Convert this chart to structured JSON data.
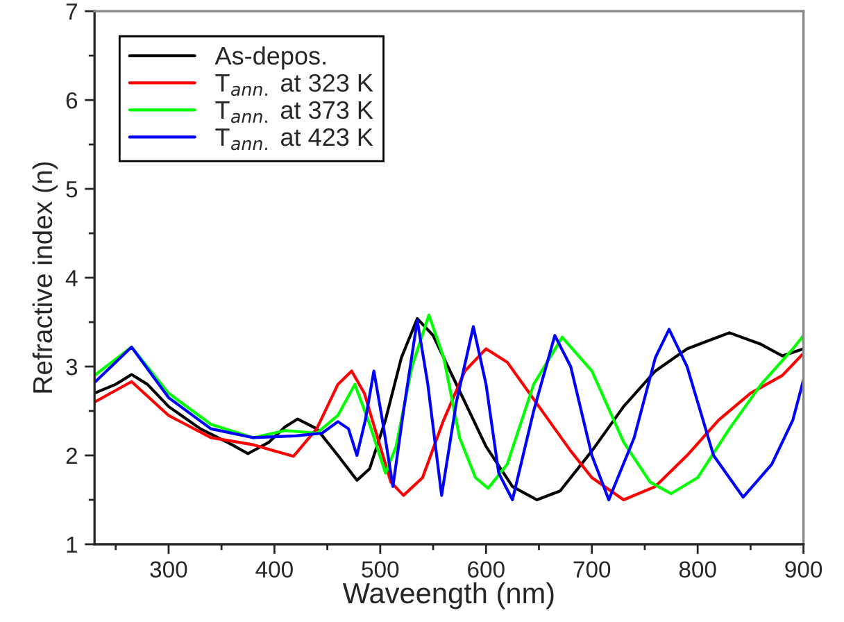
{
  "chart_data": {
    "type": "line",
    "xlabel": "Waveength (nm)",
    "ylabel": "Refractive index (n)",
    "xlim": [
      230,
      900
    ],
    "ylim": [
      1,
      7
    ],
    "xticks": [
      {
        "value": 250,
        "label": null
      },
      300,
      {
        "value": 350,
        "label": null
      },
      400,
      {
        "value": 450,
        "label": null
      },
      500,
      {
        "value": 550,
        "label": null
      },
      600,
      {
        "value": 650,
        "label": null
      },
      700,
      {
        "value": 750,
        "label": null
      },
      800,
      {
        "value": 850,
        "label": null
      },
      900
    ],
    "yticks": [
      1,
      {
        "value": 1.5,
        "label": null
      },
      2,
      {
        "value": 2.5,
        "label": null
      },
      3,
      {
        "value": 3.5,
        "label": null
      },
      4,
      {
        "value": 4.5,
        "label": null
      },
      5,
      {
        "value": 5.5,
        "label": null
      },
      6,
      {
        "value": 6.5,
        "label": null
      },
      7
    ],
    "grid": false,
    "legend": "top left",
    "marker": "none",
    "line_style": "solid",
    "series": [
      {
        "name": "As-depos.",
        "color": "#000000",
        "x": [
          230,
          250,
          265,
          280,
          300,
          330,
          360,
          375,
          395,
          410,
          422,
          440,
          460,
          478,
          490,
          505,
          520,
          535,
          550,
          570,
          600,
          625,
          648,
          670,
          700,
          730,
          760,
          790,
          830,
          860,
          880,
          900
        ],
        "values": [
          2.7,
          2.8,
          2.91,
          2.8,
          2.55,
          2.3,
          2.12,
          2.02,
          2.15,
          2.32,
          2.41,
          2.3,
          2.0,
          1.72,
          1.85,
          2.4,
          3.1,
          3.54,
          3.35,
          2.85,
          2.1,
          1.65,
          1.5,
          1.6,
          2.05,
          2.55,
          2.95,
          3.2,
          3.38,
          3.25,
          3.12,
          3.2
        ]
      },
      {
        "name": "T$_{ann.}$ at 323 K",
        "color": "#ff0000",
        "x": [
          230,
          265,
          300,
          340,
          380,
          400,
          418,
          440,
          460,
          473,
          485,
          500,
          510,
          522,
          540,
          560,
          580,
          600,
          620,
          650,
          680,
          700,
          730,
          760,
          790,
          820,
          850,
          880,
          900
        ],
        "values": [
          2.6,
          2.83,
          2.45,
          2.2,
          2.12,
          2.05,
          1.99,
          2.3,
          2.8,
          2.95,
          2.7,
          2.1,
          1.7,
          1.55,
          1.75,
          2.4,
          2.95,
          3.2,
          3.05,
          2.55,
          2.05,
          1.75,
          1.5,
          1.65,
          2.0,
          2.4,
          2.7,
          2.9,
          3.15
        ]
      },
      {
        "name": "T$_{ann.}$ at 373 K",
        "color": "#00ff00",
        "x": [
          230,
          265,
          300,
          340,
          380,
          410,
          440,
          460,
          476,
          490,
          505,
          515,
          530,
          546,
          560,
          575,
          590,
          602,
          620,
          645,
          672,
          700,
          730,
          755,
          775,
          800,
          830,
          860,
          890,
          900
        ],
        "values": [
          2.9,
          3.22,
          2.7,
          2.35,
          2.2,
          2.28,
          2.25,
          2.45,
          2.8,
          2.35,
          1.8,
          2.1,
          3.0,
          3.58,
          3.1,
          2.2,
          1.75,
          1.63,
          1.9,
          2.8,
          3.33,
          2.95,
          2.15,
          1.7,
          1.57,
          1.75,
          2.3,
          2.8,
          3.2,
          3.35
        ]
      },
      {
        "name": "T$_{ann.}$ at 423 K",
        "color": "#0000ff",
        "x": [
          230,
          265,
          300,
          340,
          380,
          420,
          445,
          460,
          470,
          478,
          486,
          494,
          502,
          512,
          522,
          535,
          545,
          558,
          572,
          588,
          600,
          612,
          625,
          645,
          665,
          680,
          700,
          716,
          740,
          760,
          773,
          790,
          815,
          843,
          870,
          890,
          900
        ],
        "values": [
          2.82,
          3.22,
          2.65,
          2.3,
          2.2,
          2.22,
          2.25,
          2.38,
          2.3,
          2.0,
          2.4,
          2.95,
          2.4,
          1.65,
          2.5,
          3.52,
          2.8,
          1.55,
          2.6,
          3.45,
          2.8,
          1.8,
          1.5,
          2.5,
          3.35,
          3.0,
          2.0,
          1.5,
          2.2,
          3.1,
          3.42,
          3.0,
          2.0,
          1.53,
          1.9,
          2.4,
          2.85
        ]
      }
    ]
  }
}
